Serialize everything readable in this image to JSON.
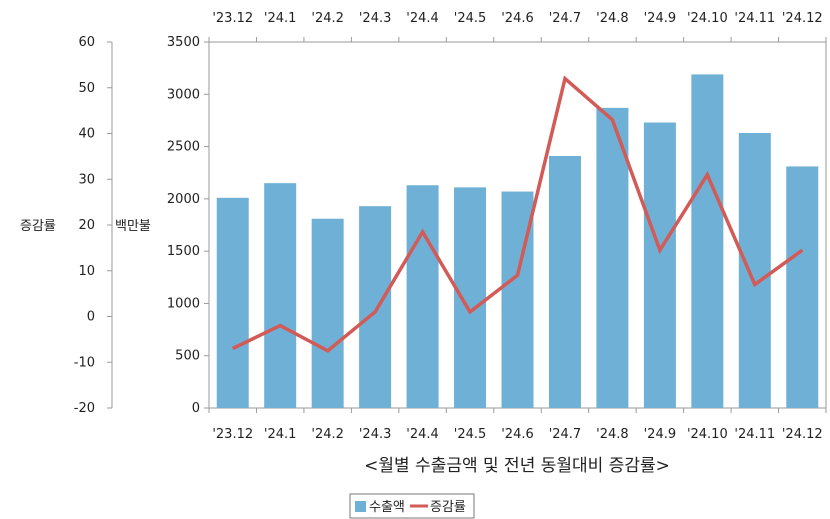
{
  "chart_data": {
    "type": "bar",
    "categories": [
      "'23.12",
      "'24.1",
      "'24.2",
      "'24.3",
      "'24.4",
      "'24.5",
      "'24.6",
      "'24.7",
      "'24.8",
      "'24.9",
      "'24.10",
      "'24.11",
      "'24.12"
    ],
    "series": [
      {
        "name": "수출액",
        "type": "bar",
        "axis": "left-inner",
        "color": "#6fb0d6",
        "values": [
          2010,
          2150,
          1810,
          1930,
          2130,
          2110,
          2070,
          2410,
          2870,
          2730,
          3190,
          2630,
          2310
        ]
      },
      {
        "name": "증감률",
        "type": "line",
        "axis": "left-outer",
        "color": "#d25a57",
        "values": [
          -7,
          -2,
          -7.5,
          1,
          18.5,
          1,
          9,
          52,
          43,
          14.5,
          31,
          7,
          14.5
        ]
      }
    ],
    "y_bar": {
      "label": "백만불",
      "ylim": [
        0,
        3500
      ],
      "ticks": [
        0,
        500,
        1000,
        1500,
        2000,
        2500,
        3000,
        3500
      ]
    },
    "y_line": {
      "label": "증감률",
      "ylim": [
        -20,
        60
      ],
      "ticks": [
        -20,
        -10,
        0,
        10,
        20,
        30,
        40,
        50,
        60
      ]
    },
    "title": "<월별 수출금액 및 전년 동월대비 증감률>",
    "grid": false,
    "legend_position": "bottom-left"
  }
}
